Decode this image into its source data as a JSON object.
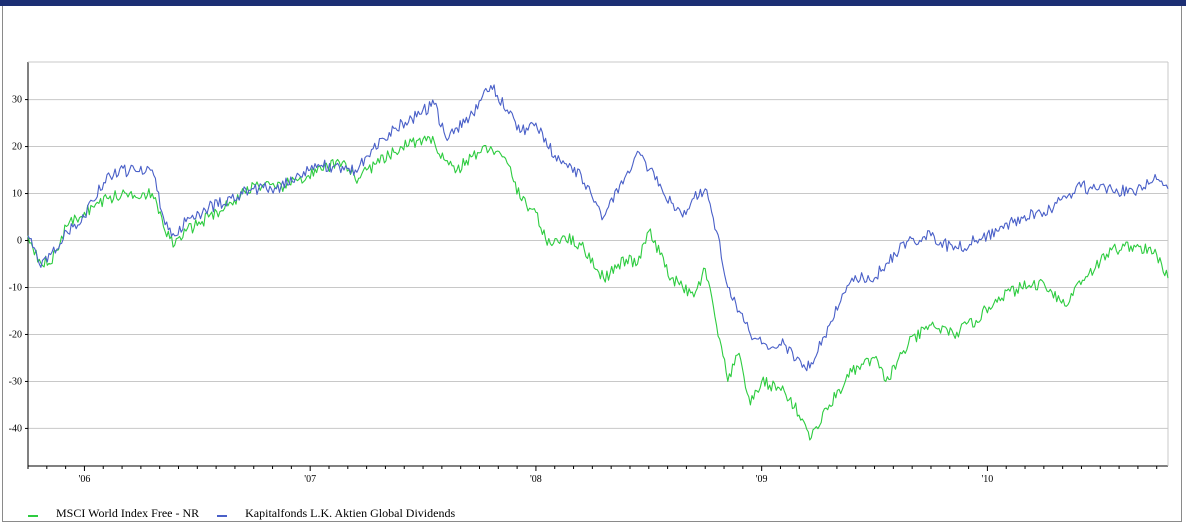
{
  "chart_data": {
    "type": "line",
    "title": "",
    "xlabel": "",
    "ylabel": "",
    "x_ticks": [
      {
        "label": "'06",
        "pos": 2006.0
      },
      {
        "label": "'07",
        "pos": 2007.0
      },
      {
        "label": "'08",
        "pos": 2008.0
      },
      {
        "label": "'09",
        "pos": 2009.0
      },
      {
        "label": "'10",
        "pos": 2010.0
      }
    ],
    "xlim": [
      2005.75,
      2010.8
    ],
    "y_ticks": [
      30,
      20,
      10,
      0,
      -10,
      -20,
      -30,
      -40
    ],
    "ylim": [
      -48,
      38
    ],
    "grid": "horizontal",
    "legend_position": "bottom-left",
    "series": [
      {
        "name": "MSCI World Index Free - NR",
        "color": "#2ecc40",
        "x": [
          2005.75,
          2005.8,
          2005.85,
          2005.92,
          2006.0,
          2006.1,
          2006.2,
          2006.3,
          2006.35,
          2006.4,
          2006.45,
          2006.55,
          2006.65,
          2006.75,
          2006.85,
          2006.95,
          2007.05,
          2007.15,
          2007.2,
          2007.25,
          2007.35,
          2007.45,
          2007.55,
          2007.6,
          2007.65,
          2007.72,
          2007.8,
          2007.88,
          2007.93,
          2008.0,
          2008.05,
          2008.12,
          2008.2,
          2008.3,
          2008.4,
          2008.45,
          2008.5,
          2008.55,
          2008.6,
          2008.65,
          2008.7,
          2008.75,
          2008.8,
          2008.85,
          2008.9,
          2008.95,
          2009.0,
          2009.1,
          2009.18,
          2009.22,
          2009.3,
          2009.4,
          2009.5,
          2009.55,
          2009.65,
          2009.75,
          2009.85,
          2009.95,
          2010.05,
          2010.15,
          2010.25,
          2010.35,
          2010.4,
          2010.45,
          2010.55,
          2010.65,
          2010.75,
          2010.8
        ],
        "values": [
          1,
          -4,
          -5,
          3,
          6,
          9,
          10,
          10,
          3,
          -1,
          2,
          5,
          8,
          12,
          11,
          13,
          15,
          17,
          13,
          15,
          18,
          21,
          21,
          17,
          15,
          18,
          20,
          16,
          9,
          6,
          -1,
          1,
          -1,
          -8,
          -4,
          -5,
          2,
          -3,
          -8,
          -10,
          -12,
          -6,
          -18,
          -30,
          -24,
          -35,
          -30,
          -32,
          -38,
          -42,
          -35,
          -28,
          -25,
          -30,
          -22,
          -18,
          -20,
          -17,
          -12,
          -10,
          -9,
          -14,
          -9,
          -7,
          -2,
          -1,
          -3,
          -8
        ]
      },
      {
        "name": "Kapitalfonds L.K. Aktien Global Dividends",
        "color": "#4a60c8",
        "x": [
          2005.75,
          2005.8,
          2005.85,
          2005.92,
          2006.0,
          2006.1,
          2006.2,
          2006.3,
          2006.35,
          2006.4,
          2006.45,
          2006.55,
          2006.65,
          2006.75,
          2006.85,
          2006.95,
          2007.05,
          2007.15,
          2007.2,
          2007.25,
          2007.35,
          2007.45,
          2007.55,
          2007.6,
          2007.65,
          2007.72,
          2007.8,
          2007.88,
          2007.93,
          2008.0,
          2008.05,
          2008.12,
          2008.2,
          2008.3,
          2008.4,
          2008.45,
          2008.5,
          2008.55,
          2008.6,
          2008.65,
          2008.7,
          2008.75,
          2008.8,
          2008.85,
          2008.9,
          2008.95,
          2009.0,
          2009.1,
          2009.18,
          2009.22,
          2009.3,
          2009.4,
          2009.5,
          2009.55,
          2009.65,
          2009.75,
          2009.85,
          2009.95,
          2010.05,
          2010.15,
          2010.25,
          2010.35,
          2010.4,
          2010.45,
          2010.55,
          2010.65,
          2010.75,
          2010.8
        ],
        "values": [
          1,
          -5,
          -3,
          2,
          5,
          14,
          15,
          15,
          5,
          1,
          4,
          7,
          9,
          11,
          11,
          14,
          16,
          15,
          15,
          18,
          23,
          26,
          29,
          22,
          24,
          27,
          33,
          27,
          23,
          25,
          20,
          17,
          14,
          5,
          14,
          19,
          15,
          12,
          8,
          5,
          9,
          11,
          2,
          -10,
          -15,
          -20,
          -22,
          -22,
          -27,
          -26,
          -18,
          -8,
          -8,
          -5,
          0,
          1,
          -2,
          0,
          2,
          5,
          6,
          9,
          12,
          11,
          11,
          10,
          13,
          11
        ]
      }
    ]
  }
}
